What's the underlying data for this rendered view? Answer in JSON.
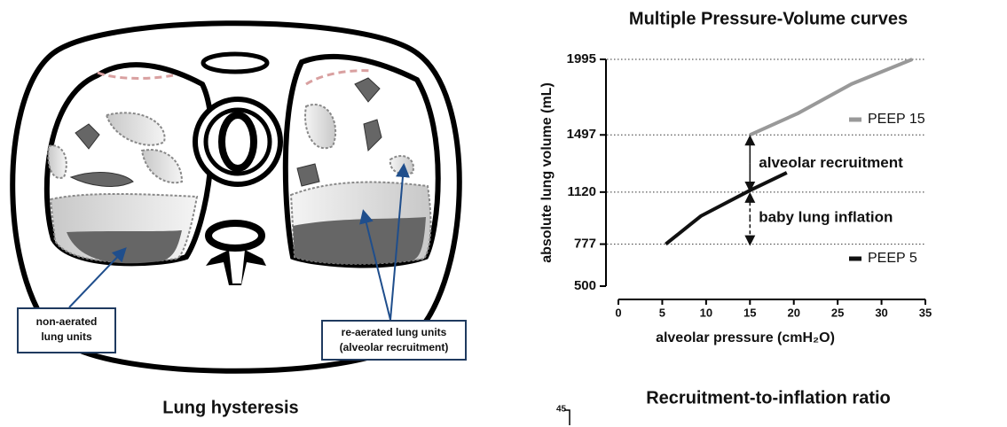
{
  "diagram": {
    "caption": "Lung hysteresis",
    "callouts": [
      {
        "lines": [
          "non-aerated",
          "lung units"
        ]
      },
      {
        "lines": [
          "re-aerated lung units",
          "(alveolar recruitment)"
        ]
      }
    ]
  },
  "page_number": "45",
  "chart_data": {
    "type": "line",
    "title": "Multiple Pressure-Volume curves",
    "caption": "Recruitment-to-inflation ratio",
    "xlabel": "alveolar pressure (cmH₂O)",
    "ylabel": "absolute lung volume (mL)",
    "xlim": [
      0,
      35
    ],
    "xticks": [
      0,
      5,
      10,
      15,
      20,
      25,
      30,
      35
    ],
    "ylim": [
      500,
      1995
    ],
    "yticks": [
      500,
      777,
      1120,
      1497,
      1995
    ],
    "grid": true,
    "series": [
      {
        "name": "PEEP 15",
        "color": "#999999",
        "x": [
          15,
          20.5,
          26.6,
          33.5
        ],
        "values": [
          1497,
          1640,
          1833,
          1995
        ]
      },
      {
        "name": "PEEP 5",
        "color": "#111111",
        "x": [
          5.4,
          9.4,
          15,
          19.2
        ],
        "values": [
          777,
          962,
          1131,
          1248
        ]
      }
    ],
    "annotations": [
      "alveolar recruitment",
      "baby lung inflation"
    ]
  }
}
